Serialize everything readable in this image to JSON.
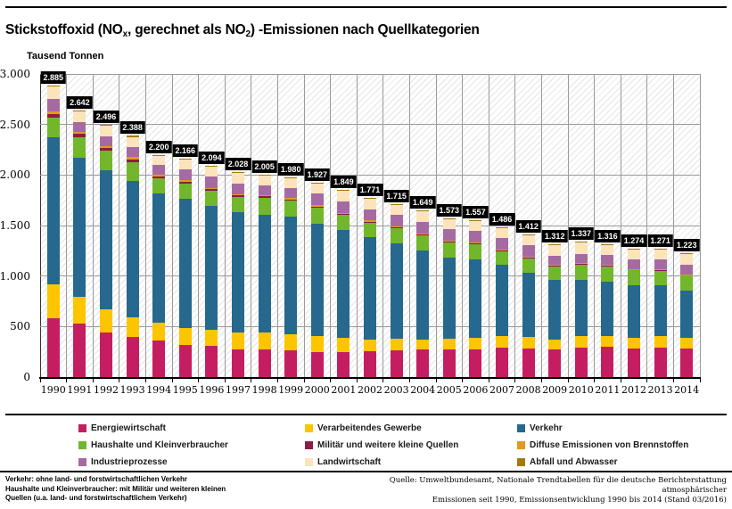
{
  "header": {
    "title_parts": [
      "Stickstoffoxid (NO",
      "x",
      ", gerechnet als NO",
      "2",
      ") -Emissionen nach Quellkategorien"
    ]
  },
  "chart_data": {
    "type": "bar",
    "stacked": true,
    "title": "Stickstoffoxid (NOx, gerechnet als NO2) -Emissionen nach Quellkategorien",
    "unit_label": "Tausend Tonnen",
    "xlabel": "",
    "ylabel": "Tausend Tonnen",
    "ylim": [
      0,
      3000
    ],
    "ytick_step": 500,
    "ytick_labels": [
      "0",
      "500",
      "1.000",
      "1.500",
      "2.000",
      "2.500",
      "3.000"
    ],
    "grid": true,
    "legend_position": "bottom",
    "plot_background": "diagonal-hatch",
    "categories": [
      "1990",
      "1991",
      "1992",
      "1993",
      "1994",
      "1995",
      "1996",
      "1997",
      "1998",
      "1999",
      "2000",
      "2001",
      "2002",
      "2003",
      "2004",
      "2005",
      "2006",
      "2007",
      "2008",
      "2009",
      "2010",
      "2011",
      "2012",
      "2013",
      "2014"
    ],
    "totals": [
      2885,
      2642,
      2496,
      2388,
      2200,
      2166,
      2094,
      2028,
      2005,
      1980,
      1927,
      1849,
      1771,
      1715,
      1649,
      1573,
      1557,
      1486,
      1412,
      1312,
      1337,
      1316,
      1274,
      1271,
      1223
    ],
    "total_labels": [
      "2.885",
      "2.642",
      "2.496",
      "2.388",
      "2.200",
      "2.166",
      "2.094",
      "2.028",
      "2.005",
      "1.980",
      "1.927",
      "1.849",
      "1.771",
      "1.715",
      "1.649",
      "1.573",
      "1.557",
      "1.486",
      "1.412",
      "1.312",
      "1.337",
      "1.316",
      "1.274",
      "1.271",
      "1.223"
    ],
    "series": [
      {
        "name": "Energiewirtschaft",
        "color": "#c41e61",
        "values": [
          585,
          532,
          438,
          394,
          364,
          320,
          306,
          276,
          276,
          262,
          247,
          245,
          255,
          265,
          270,
          270,
          275,
          290,
          285,
          270,
          290,
          300,
          285,
          290,
          285
        ]
      },
      {
        "name": "Verarbeitendes Gewerbe",
        "color": "#fdc500",
        "values": [
          330,
          259,
          235,
          197,
          177,
          163,
          162,
          162,
          162,
          162,
          162,
          145,
          120,
          115,
          105,
          110,
          112,
          112,
          109,
          103,
          112,
          103,
          103,
          112,
          103
        ]
      },
      {
        "name": "Verkehr",
        "color": "#26688e",
        "values": [
          1459,
          1381,
          1374,
          1350,
          1280,
          1285,
          1225,
          1196,
          1171,
          1168,
          1110,
          1064,
          1011,
          941,
          877,
          803,
          780,
          706,
          642,
          585,
          561,
          544,
          520,
          503,
          470
        ]
      },
      {
        "name": "Haushalte und Kleinverbraucher",
        "color": "#72b62b",
        "values": [
          195,
          204,
          191,
          190,
          145,
          147,
          147,
          147,
          162,
          153,
          155,
          150,
          141,
          150,
          150,
          150,
          150,
          140,
          140,
          140,
          150,
          150,
          150,
          150,
          150
        ]
      },
      {
        "name": "Militär und weitere kleine Quellen",
        "color": "#8e1c42",
        "values": [
          38,
          30,
          28,
          26,
          22,
          20,
          18,
          17,
          16,
          15,
          14,
          13,
          12,
          11,
          10,
          9,
          9,
          8,
          8,
          7,
          7,
          7,
          6,
          6,
          6
        ]
      },
      {
        "name": "Diffuse Emissionen von Brennstoffen",
        "color": "#e2991f",
        "values": [
          25,
          24,
          22,
          21,
          16,
          15,
          15,
          14,
          13,
          13,
          12,
          11,
          11,
          10,
          10,
          9,
          9,
          8,
          8,
          7,
          7,
          7,
          6,
          6,
          5
        ]
      },
      {
        "name": "Industrieprozesse",
        "color": "#a66aa3",
        "values": [
          118,
          97,
          95,
          95,
          100,
          105,
          110,
          105,
          98,
          97,
          115,
          110,
          110,
          112,
          112,
          112,
          112,
          112,
          110,
          90,
          95,
          95,
          95,
          95,
          95
        ]
      },
      {
        "name": "Landwirtschaft",
        "color": "#fbe4bb",
        "values": [
          123,
          104,
          103,
          105,
          88,
          103,
          103,
          103,
          100,
          103,
          105,
          105,
          105,
          105,
          110,
          105,
          105,
          105,
          105,
          105,
          110,
          105,
          105,
          105,
          105
        ]
      },
      {
        "name": "Abfall und Abwasser",
        "color": "#a5790f",
        "values": [
          12,
          11,
          10,
          10,
          8,
          8,
          8,
          8,
          7,
          7,
          7,
          6,
          6,
          6,
          5,
          5,
          5,
          5,
          5,
          5,
          5,
          5,
          4,
          4,
          4
        ]
      }
    ]
  },
  "footnotes": {
    "left_lines": [
      "Verkehr: ohne land- und forstwirtschaftlichen Verkehr",
      "Haushalte und Kleinverbraucher: mit Militär und weiteren kleinen",
      "Quellen (u.a. land- und forstwirtschaftlichem Verkehr)"
    ],
    "source_lines": [
      "Quelle: Umweltbundesamt, Nationale Trendtabellen für die deutsche Berichterstattung atmosphärischer",
      "Emissionen seit 1990, Emissionsentwicklung 1990 bis 2014 (Stand 03/2016)"
    ]
  }
}
